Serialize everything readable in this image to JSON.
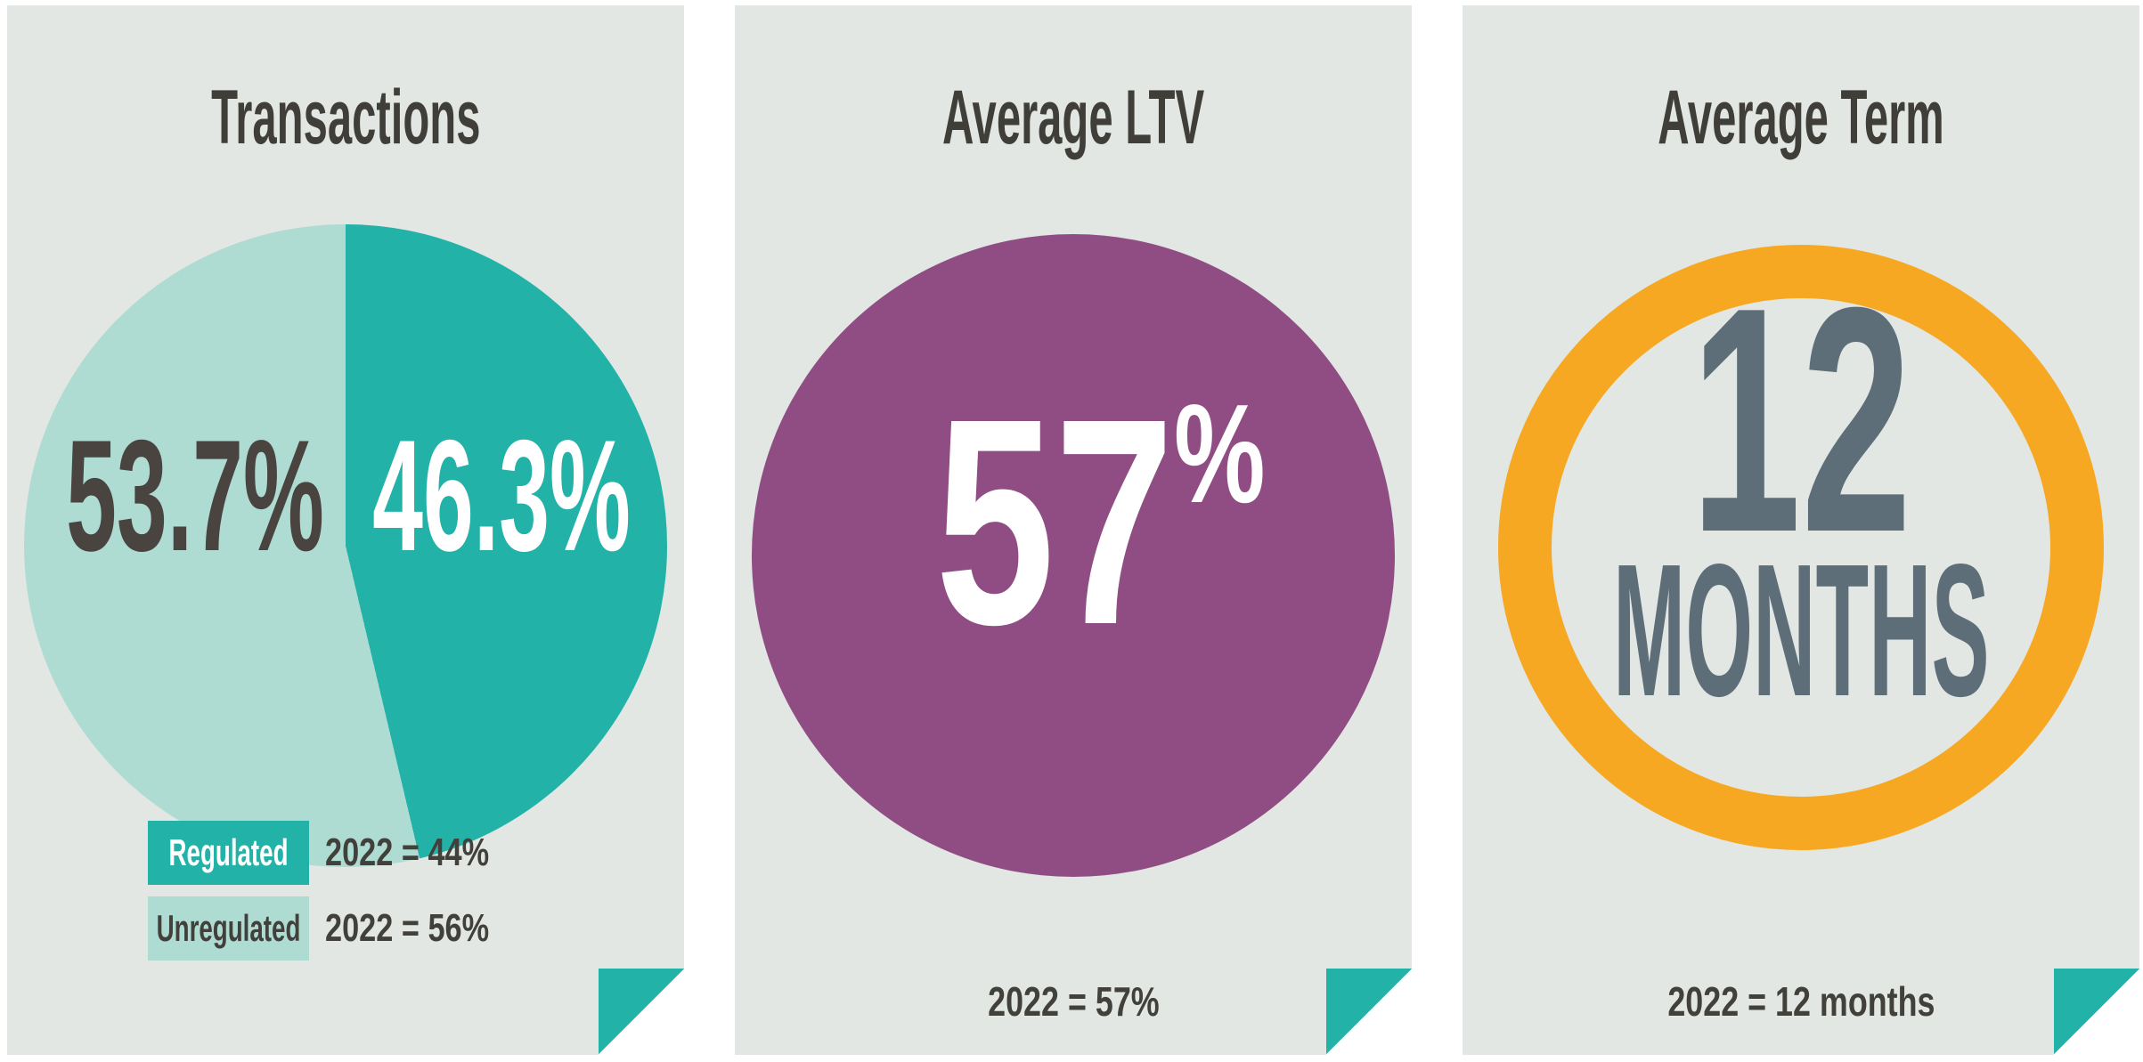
{
  "colors": {
    "panel_background": "#e2e7e3",
    "teal": "#23b2a8",
    "light_teal": "#aedbd2",
    "purple": "#8f4d84",
    "orange": "#f7a823",
    "slate_gray": "#5e6e78",
    "dark_text": "#42403b",
    "white_text": "#ffffff"
  },
  "panels": [
    {
      "title": "Transactions",
      "slices": [
        {
          "name": "Regulated",
          "label": "46.3%",
          "value": 46.3,
          "color": "#23b2a8"
        },
        {
          "name": "Unregulated",
          "label": "53.7%",
          "value": 53.7,
          "color": "#aedbd2"
        }
      ],
      "legend": [
        {
          "label": "Regulated",
          "value": "2022 = 44%"
        },
        {
          "label": "Unregulated",
          "value": "2022 = 56%"
        }
      ]
    },
    {
      "title": "Average LTV",
      "value": "57",
      "unit": "%",
      "footnote": "2022 = 57%"
    },
    {
      "title": "Average Term",
      "value": "12",
      "unit": "MONTHS",
      "footnote": "2022 = 12 months"
    }
  ],
  "chart_data": [
    {
      "type": "pie",
      "title": "Transactions",
      "categories": [
        "Regulated",
        "Unregulated"
      ],
      "values": [
        46.3,
        53.7
      ],
      "labels": [
        "46.3%",
        "53.7%"
      ],
      "colors": [
        "#23b2a8",
        "#aedbd2"
      ],
      "start_angle": "12 o'clock, clockwise",
      "legend_position": "bottom-left",
      "prior_year": [
        {
          "category": "Regulated",
          "text": "2022 = 44%"
        },
        {
          "category": "Unregulated",
          "text": "2022 = 56%"
        }
      ]
    },
    {
      "type": "kpi",
      "title": "Average LTV",
      "value": 57,
      "unit": "%",
      "display": "57%",
      "shape": "filled-circle",
      "prior_year": "2022 = 57%"
    },
    {
      "type": "kpi",
      "title": "Average Term",
      "value": 12,
      "unit": "months",
      "display": "12 MONTHS",
      "shape": "ring",
      "prior_year": "2022 = 12 months"
    }
  ]
}
